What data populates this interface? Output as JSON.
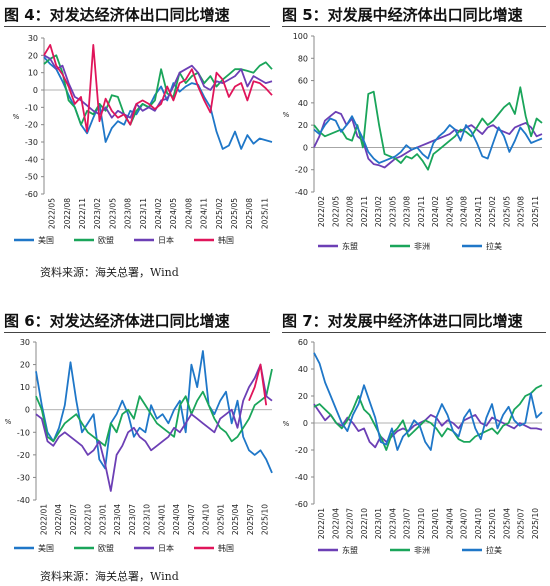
{
  "colors": {
    "us": "#1f77c8",
    "eu": "#1aa55a",
    "jp": "#6c3fb5",
    "kr": "#e0155a",
    "asean": "#6c3fb5",
    "africa": "#1aa55a",
    "latam": "#1f77c8"
  },
  "source_top": "资料来源：海关总署，Wind",
  "source_bottom": "资料来源：海关总署，Wind",
  "chart_data": [
    {
      "id": "fig4",
      "type": "line",
      "title": "图 4：对发达经济体出口同比增速",
      "ylabel": "%",
      "ylim": [
        -60,
        30
      ],
      "yticks": [
        30,
        20,
        10,
        0,
        -10,
        -20,
        -30,
        -40,
        -50,
        -60
      ],
      "xticks": [
        "2022/05",
        "2022/08",
        "2022/11",
        "2023/02",
        "2023/05",
        "2023/08",
        "2023/11",
        "2024/02",
        "2024/05",
        "2024/08",
        "2024/11",
        "2025/02",
        "2025/05",
        "2025/08",
        "2025/11"
      ],
      "series": [
        {
          "name": "美国",
          "color_key": "us",
          "values": [
            19,
            15,
            12,
            5,
            -3,
            -10,
            -20,
            -25,
            -16,
            -8,
            -30,
            -22,
            -18,
            -20,
            -12,
            -14,
            -8,
            -10,
            -3,
            2,
            -6,
            4,
            -1,
            2,
            4,
            3,
            -4,
            -10,
            -24,
            -34,
            -32,
            -24,
            -34,
            -26,
            -31,
            -28,
            -29,
            -30
          ]
        },
        {
          "name": "欧盟",
          "color_key": "eu",
          "values": [
            15,
            18,
            20,
            10,
            -6,
            -10,
            -20,
            -12,
            -14,
            -8,
            -12,
            -3,
            -4,
            -14,
            -20,
            -12,
            -8,
            -10,
            -6,
            12,
            -2,
            -4,
            10,
            4,
            8,
            10,
            4,
            8,
            2,
            6,
            9,
            12,
            12,
            11,
            10,
            14,
            16,
            12
          ]
        },
        {
          "name": "日本",
          "color_key": "jp",
          "values": [
            20,
            18,
            12,
            14,
            4,
            -4,
            -6,
            -9,
            -12,
            -14,
            -10,
            -16,
            -12,
            -14,
            -16,
            -8,
            -12,
            -10,
            -12,
            -6,
            -5,
            2,
            10,
            12,
            14,
            10,
            2,
            0,
            5,
            4,
            6,
            8,
            12,
            2,
            8,
            6,
            4,
            5
          ]
        },
        {
          "name": "韩国",
          "color_key": "kr",
          "values": [
            20,
            26,
            14,
            9,
            2,
            -8,
            -4,
            -24,
            26,
            -18,
            -5,
            -12,
            -16,
            -14,
            -20,
            -8,
            -6,
            -8,
            -11,
            -8,
            2,
            -6,
            4,
            6,
            12,
            2,
            -6,
            -13,
            10,
            6,
            -4,
            2,
            4,
            -6,
            5,
            4,
            1,
            -3
          ]
        }
      ]
    },
    {
      "id": "fig5",
      "type": "line",
      "title": "图 5：对发展中经济体出口同比增速",
      "ylabel": "%",
      "ylim": [
        -40,
        100
      ],
      "yticks": [
        100,
        80,
        60,
        40,
        20,
        0,
        -20,
        -40
      ],
      "xticks": [
        "2022/02",
        "2022/05",
        "2022/08",
        "2022/11",
        "2023/02",
        "2023/05",
        "2023/08",
        "2023/11",
        "2024/02",
        "2024/05",
        "2024/08",
        "2024/11",
        "2025/02",
        "2025/05",
        "2025/08",
        "2025/11"
      ],
      "series": [
        {
          "name": "东盟",
          "color_key": "asean",
          "values": [
            0,
            10,
            24,
            28,
            32,
            30,
            20,
            26,
            10,
            6,
            -10,
            -15,
            -16,
            -18,
            -14,
            -10,
            -8,
            -5,
            -2,
            0,
            2,
            4,
            6,
            8,
            10,
            12,
            16,
            14,
            18,
            20,
            16,
            12,
            18,
            20,
            16,
            14,
            12,
            18,
            20,
            22,
            18,
            10,
            12
          ]
        },
        {
          "name": "非洲",
          "color_key": "africa",
          "values": [
            20,
            14,
            10,
            12,
            14,
            16,
            8,
            6,
            20,
            0,
            48,
            50,
            20,
            -6,
            -8,
            -10,
            -14,
            -8,
            -10,
            -6,
            -12,
            -20,
            -6,
            -2,
            2,
            6,
            10,
            16,
            14,
            10,
            18,
            26,
            20,
            24,
            30,
            36,
            40,
            30,
            54,
            28,
            10,
            26,
            22
          ]
        },
        {
          "name": "拉美",
          "color_key": "latam",
          "values": [
            16,
            12,
            20,
            26,
            24,
            14,
            20,
            28,
            18,
            8,
            -4,
            -10,
            -14,
            -12,
            -10,
            -8,
            -4,
            2,
            -2,
            0,
            -6,
            -10,
            4,
            10,
            14,
            20,
            16,
            6,
            20,
            14,
            4,
            -8,
            -10,
            4,
            18,
            10,
            -4,
            6,
            18,
            12,
            4,
            6,
            8
          ]
        }
      ]
    },
    {
      "id": "fig6",
      "type": "line",
      "title": "图 6：对发达经济体进口同比增速",
      "ylabel": "%",
      "ylim": [
        -40,
        30
      ],
      "yticks": [
        30,
        20,
        10,
        0,
        -10,
        -20,
        -30,
        -40
      ],
      "xticks": [
        "2022/01",
        "2022/04",
        "2022/07",
        "2022/10",
        "2023/01",
        "2023/04",
        "2023/07",
        "2023/10",
        "2024/01",
        "2024/04",
        "2024/07",
        "2024/10",
        "2025/01",
        "2025/04",
        "2025/07",
        "2025/10"
      ],
      "series": [
        {
          "name": "美国",
          "color_key": "us",
          "values": [
            17,
            2,
            -10,
            -14,
            -8,
            2,
            21,
            4,
            -10,
            -6,
            -2,
            -22,
            -26,
            -6,
            -2,
            4,
            -2,
            -12,
            -8,
            -10,
            2,
            -4,
            -2,
            -6,
            0,
            4,
            -10,
            20,
            10,
            26,
            2,
            -2,
            4,
            8,
            -6,
            4,
            -12,
            -18,
            -20,
            -18,
            -22,
            -28
          ]
        },
        {
          "name": "欧盟",
          "color_key": "eu",
          "values": [
            6,
            0,
            -12,
            -14,
            -10,
            -6,
            -4,
            -2,
            -6,
            -10,
            -12,
            -14,
            -16,
            -6,
            -10,
            -2,
            0,
            -4,
            6,
            2,
            -2,
            -6,
            -8,
            -10,
            -12,
            2,
            6,
            -2,
            4,
            8,
            2,
            -4,
            -8,
            -10,
            -14,
            -12,
            -8,
            -4,
            2,
            4,
            6,
            18
          ]
        },
        {
          "name": "日本",
          "color_key": "jp",
          "values": [
            -2,
            -4,
            -14,
            -16,
            -12,
            -10,
            -12,
            -14,
            -16,
            -20,
            -18,
            -14,
            -24,
            -36,
            -20,
            -16,
            -10,
            -8,
            -12,
            -14,
            -18,
            -16,
            -14,
            -12,
            -8,
            -10,
            -6,
            -2,
            -4,
            -6,
            -8,
            -10,
            -4,
            -2,
            0,
            -8,
            4,
            10,
            14,
            20,
            6,
            4
          ]
        },
        {
          "name": "韩国",
          "color_key": "kr",
          "values": [
            null,
            null,
            null,
            null,
            null,
            null,
            null,
            null,
            null,
            null,
            null,
            null,
            null,
            null,
            null,
            null,
            null,
            null,
            null,
            null,
            null,
            null,
            null,
            null,
            null,
            null,
            null,
            null,
            null,
            null,
            null,
            null,
            null,
            null,
            null,
            null,
            null,
            4,
            10,
            20,
            2,
            null
          ]
        }
      ]
    },
    {
      "id": "fig7",
      "type": "line",
      "title": "图 7：对发展中经济体进口同比增速",
      "ylabel": "%",
      "ylim": [
        -60,
        60
      ],
      "yticks": [
        60,
        40,
        20,
        0,
        -20,
        -40,
        -60
      ],
      "xticks": [
        "2022/01",
        "2022/04",
        "2022/07",
        "2022/10",
        "2023/01",
        "2023/04",
        "2023/07",
        "2023/10",
        "2024/01",
        "2024/04",
        "2024/07",
        "2024/10",
        "2025/01",
        "2025/04",
        "2025/07",
        "2025/10"
      ],
      "series": [
        {
          "name": "东盟",
          "color_key": "asean",
          "values": [
            14,
            8,
            2,
            6,
            0,
            -2,
            4,
            0,
            -6,
            -4,
            -14,
            -18,
            -10,
            -14,
            -10,
            -6,
            -4,
            -6,
            -2,
            0,
            2,
            6,
            4,
            -2,
            2,
            0,
            -4,
            2,
            4,
            6,
            0,
            -2,
            4,
            2,
            0,
            -2,
            -4,
            0,
            -2,
            -4,
            -4,
            -5
          ]
        },
        {
          "name": "非洲",
          "color_key": "africa",
          "values": [
            12,
            14,
            10,
            6,
            0,
            -4,
            2,
            10,
            20,
            10,
            6,
            -2,
            -10,
            -20,
            -8,
            -4,
            2,
            -10,
            -6,
            -2,
            2,
            0,
            -4,
            -10,
            -4,
            -6,
            -12,
            -14,
            -14,
            -10,
            -8,
            -6,
            -4,
            -8,
            -2,
            0,
            10,
            14,
            20,
            22,
            26,
            28
          ]
        },
        {
          "name": "拉美",
          "color_key": "latam",
          "values": [
            52,
            44,
            30,
            20,
            10,
            0,
            -6,
            6,
            14,
            28,
            16,
            4,
            -14,
            -16,
            -4,
            -20,
            -10,
            -6,
            2,
            -2,
            -14,
            -20,
            4,
            14,
            6,
            -6,
            -10,
            4,
            10,
            -4,
            -12,
            4,
            14,
            -4,
            6,
            12,
            2,
            -2,
            0,
            22,
            4,
            8
          ]
        }
      ]
    }
  ]
}
